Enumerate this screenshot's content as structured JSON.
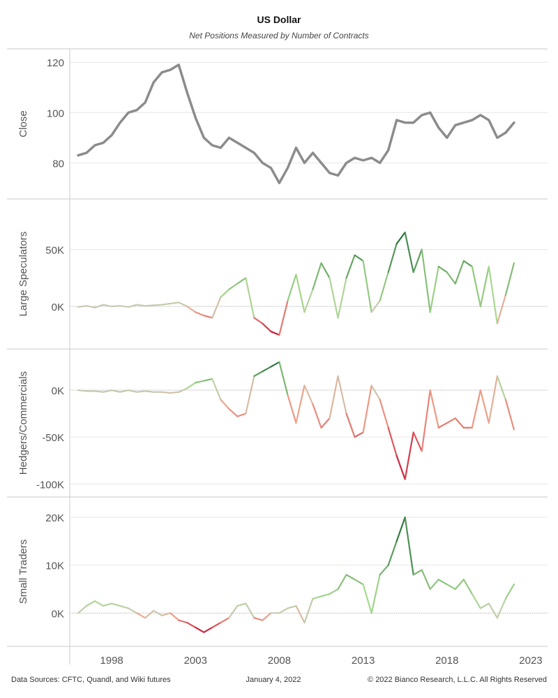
{
  "header": {
    "title": "US Dollar",
    "subtitle": "Net Positions Measured by Number of Contracts"
  },
  "footer": {
    "sources": "Data Sources: CFTC, Quandl, and Wiki futures",
    "date": "January 4, 2022",
    "copyright": "© 2022 Bianco Research, L.L.C. All Rights Reserved"
  },
  "colors": {
    "close_line": "#8c8c8c",
    "positive_strong": "#1e6b34",
    "positive_light": "#a7d98e",
    "neutral": "#c9c9b2",
    "negative_light": "#f0a48c",
    "negative_strong": "#c8102e",
    "grid": "#e6e6e6",
    "panel_border": "#c8c8c8"
  },
  "chart_data": {
    "type": "line",
    "x_axis": {
      "ticks": [
        "1998",
        "2003",
        "2008",
        "2013",
        "2018",
        "2023"
      ],
      "tick_values": [
        1998,
        2003,
        2008,
        2013,
        2018,
        2023
      ],
      "range": [
        1995.5,
        2024.0
      ]
    },
    "panels": [
      {
        "ylabel": "Close",
        "ticks": [
          "120",
          "100",
          "80"
        ],
        "tick_values": [
          120,
          100,
          80
        ],
        "ylim": [
          69,
          122
        ],
        "color_mode": "gray",
        "x": [
          1996.0,
          1996.5,
          1997.0,
          1997.5,
          1998.0,
          1998.5,
          1999.0,
          1999.5,
          2000.0,
          2000.5,
          2001.0,
          2001.5,
          2002.0,
          2002.5,
          2003.0,
          2003.5,
          2004.0,
          2004.5,
          2005.0,
          2005.5,
          2006.0,
          2006.5,
          2007.0,
          2007.5,
          2008.0,
          2008.5,
          2009.0,
          2009.5,
          2010.0,
          2010.5,
          2011.0,
          2011.5,
          2012.0,
          2012.5,
          2013.0,
          2013.5,
          2014.0,
          2014.5,
          2015.0,
          2015.5,
          2016.0,
          2016.5,
          2017.0,
          2017.5,
          2018.0,
          2018.5,
          2019.0,
          2019.5,
          2020.0,
          2020.5,
          2021.0,
          2021.5,
          2022.0
        ],
        "values": [
          83,
          84,
          87,
          88,
          91,
          96,
          100,
          101,
          104,
          112,
          116,
          117,
          119,
          108,
          98,
          90,
          87,
          86,
          90,
          88,
          86,
          84,
          80,
          78,
          72,
          78,
          86,
          80,
          84,
          80,
          76,
          75,
          80,
          82,
          81,
          82,
          80,
          85,
          97,
          96,
          96,
          99,
          100,
          94,
          90,
          95,
          96,
          97,
          99,
          97,
          90,
          92,
          96
        ]
      },
      {
        "ylabel": "Large Speculators",
        "ticks": [
          "50K",
          "0K"
        ],
        "tick_values": [
          50000,
          0
        ],
        "ylim": [
          -30000,
          87000
        ],
        "color_mode": "diverging",
        "x": [
          1996.0,
          1996.5,
          1997.0,
          1997.5,
          1998.0,
          1998.5,
          1999.0,
          1999.5,
          2000.0,
          2000.5,
          2001.0,
          2001.5,
          2002.0,
          2002.5,
          2003.0,
          2003.5,
          2004.0,
          2004.5,
          2005.0,
          2005.5,
          2006.0,
          2006.5,
          2007.0,
          2007.5,
          2008.0,
          2008.5,
          2009.0,
          2009.5,
          2010.0,
          2010.5,
          2011.0,
          2011.5,
          2012.0,
          2012.5,
          2013.0,
          2013.5,
          2014.0,
          2014.5,
          2015.0,
          2015.5,
          2016.0,
          2016.5,
          2017.0,
          2017.5,
          2018.0,
          2018.5,
          2019.0,
          2019.5,
          2020.0,
          2020.5,
          2021.0,
          2021.5,
          2022.0
        ],
        "values": [
          -500,
          500,
          -1000,
          1500,
          0,
          500,
          -500,
          1500,
          500,
          1000,
          1500,
          2500,
          3500,
          0,
          -5000,
          -8000,
          -10000,
          8000,
          15000,
          20000,
          25000,
          -10000,
          -15000,
          -22000,
          -25000,
          5000,
          28000,
          -5000,
          15000,
          38000,
          25000,
          -10000,
          25000,
          45000,
          40000,
          -5000,
          5000,
          30000,
          55000,
          65000,
          30000,
          50000,
          -5000,
          35000,
          30000,
          20000,
          40000,
          35000,
          0,
          35000,
          -15000,
          10000,
          38000
        ]
      },
      {
        "ylabel": "Hedgers/Commercials",
        "ticks": [
          "0K",
          "-50K",
          "-100K"
        ],
        "tick_values": [
          0,
          -50000,
          -100000
        ],
        "ylim": [
          -105000,
          35000
        ],
        "color_mode": "diverging",
        "x": [
          1996.0,
          1996.5,
          1997.0,
          1997.5,
          1998.0,
          1998.5,
          1999.0,
          1999.5,
          2000.0,
          2000.5,
          2001.0,
          2001.5,
          2002.0,
          2002.5,
          2003.0,
          2003.5,
          2004.0,
          2004.5,
          2005.0,
          2005.5,
          2006.0,
          2006.5,
          2007.0,
          2007.5,
          2008.0,
          2008.5,
          2009.0,
          2009.5,
          2010.0,
          2010.5,
          2011.0,
          2011.5,
          2012.0,
          2012.5,
          2013.0,
          2013.5,
          2014.0,
          2014.5,
          2015.0,
          2015.5,
          2016.0,
          2016.5,
          2017.0,
          2017.5,
          2018.0,
          2018.5,
          2019.0,
          2019.5,
          2020.0,
          2020.5,
          2021.0,
          2021.5,
          2022.0
        ],
        "values": [
          0,
          -1000,
          -1000,
          -2000,
          0,
          -2000,
          0,
          -2000,
          -1000,
          -2000,
          -2000,
          -3000,
          -2000,
          2000,
          8000,
          10000,
          12000,
          -10000,
          -20000,
          -28000,
          -25000,
          15000,
          20000,
          25000,
          30000,
          -5000,
          -35000,
          5000,
          -15000,
          -40000,
          -30000,
          15000,
          -25000,
          -50000,
          -45000,
          5000,
          -10000,
          -40000,
          -70000,
          -95000,
          -45000,
          -65000,
          0,
          -40000,
          -35000,
          -30000,
          -40000,
          -40000,
          0,
          -35000,
          15000,
          -10000,
          -42000
        ]
      },
      {
        "ylabel": "Small Traders",
        "ticks": [
          "20K",
          "10K",
          "0K"
        ],
        "tick_values": [
          20000,
          10000,
          0
        ],
        "ylim": [
          -5200,
          22500
        ],
        "color_mode": "diverging",
        "x": [
          1996.0,
          1996.5,
          1997.0,
          1997.5,
          1998.0,
          1998.5,
          1999.0,
          1999.5,
          2000.0,
          2000.5,
          2001.0,
          2001.5,
          2002.0,
          2002.5,
          2003.0,
          2003.5,
          2004.0,
          2004.5,
          2005.0,
          2005.5,
          2006.0,
          2006.5,
          2007.0,
          2007.5,
          2008.0,
          2008.5,
          2009.0,
          2009.5,
          2010.0,
          2010.5,
          2011.0,
          2011.5,
          2012.0,
          2012.5,
          2013.0,
          2013.5,
          2014.0,
          2014.5,
          2015.0,
          2015.5,
          2016.0,
          2016.5,
          2017.0,
          2017.5,
          2018.0,
          2018.5,
          2019.0,
          2019.5,
          2020.0,
          2020.5,
          2021.0,
          2021.5,
          2022.0
        ],
        "values": [
          0,
          1500,
          2500,
          1500,
          2000,
          1500,
          1000,
          0,
          -1000,
          500,
          -500,
          0,
          -1500,
          -2000,
          -3000,
          -4000,
          -3000,
          -2000,
          -1000,
          1500,
          2000,
          -1000,
          -1500,
          0,
          0,
          1000,
          1500,
          -2000,
          3000,
          3500,
          4000,
          5000,
          8000,
          7000,
          6000,
          0,
          8000,
          10000,
          15000,
          20000,
          8000,
          9000,
          5000,
          7000,
          6000,
          5000,
          7000,
          4000,
          1000,
          2000,
          -1000,
          3000,
          6000
        ]
      }
    ]
  }
}
